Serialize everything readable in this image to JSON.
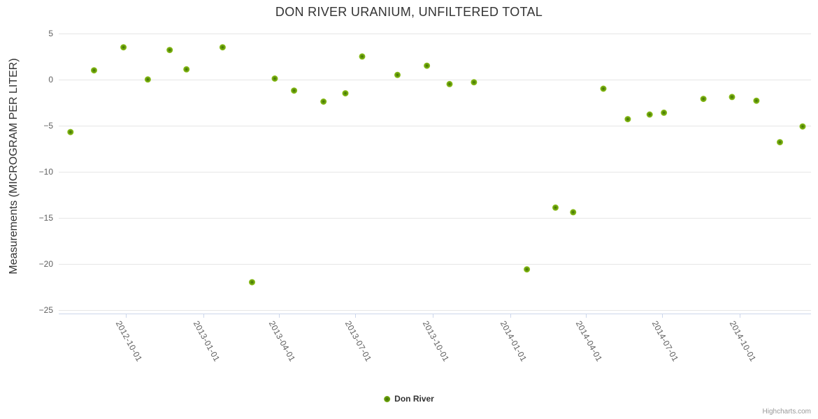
{
  "chart_data": {
    "type": "scatter",
    "title": "DON RIVER URANIUM, UNFILTERED TOTAL",
    "ylabel": "Measurements (MICROGRAM PER LITER)",
    "xlabel": "",
    "grid": "horizontal-only",
    "legend_position": "bottom-center",
    "x_ticks": [
      "2012-10-01",
      "2013-01-01",
      "2013-04-01",
      "2013-07-01",
      "2013-10-01",
      "2014-01-01",
      "2014-04-01",
      "2014-07-01",
      "2014-10-01"
    ],
    "y_ticks": [
      5,
      0,
      -5,
      -10,
      -15,
      -20,
      -25
    ],
    "xlim": [
      "2012-07-13",
      "2014-12-25"
    ],
    "ylim": [
      -25.4,
      5.9
    ],
    "series": [
      {
        "name": "Don River",
        "color": "#69a00c",
        "marker_color_center": "#3c6905",
        "marker_color_edge": "#93c41f",
        "x": [
          "2012-07-27",
          "2012-08-24",
          "2012-09-28",
          "2012-10-27",
          "2012-11-22",
          "2012-12-12",
          "2013-01-24",
          "2013-02-28",
          "2013-03-27",
          "2013-04-19",
          "2013-05-24",
          "2013-06-19",
          "2013-07-09",
          "2013-08-20",
          "2013-09-24",
          "2013-10-21",
          "2013-11-19",
          "2014-01-21",
          "2014-02-24",
          "2014-03-17",
          "2014-04-22",
          "2014-05-21",
          "2014-06-16",
          "2014-07-03",
          "2014-08-19",
          "2014-09-22",
          "2014-10-21",
          "2014-11-18",
          "2014-12-15"
        ],
        "y": [
          -5.7,
          1.0,
          3.5,
          0.0,
          3.2,
          1.1,
          3.5,
          -22.0,
          0.1,
          -1.2,
          -2.4,
          -1.5,
          2.5,
          0.5,
          1.5,
          -0.5,
          -0.3,
          -20.6,
          -13.9,
          -14.4,
          -1.0,
          -4.3,
          -3.8,
          -3.6,
          -2.1,
          -1.9,
          -2.3,
          -6.8,
          -5.1
        ]
      }
    ],
    "credits": "Highcharts.com"
  },
  "colors": {
    "background": "#ffffff",
    "title_text": "#333333",
    "axis_label_text": "#606060",
    "gridline": "#e6e6e6",
    "axis_line": "#ccd6eb",
    "legend_text": "#333333",
    "credits_text": "#999999"
  }
}
